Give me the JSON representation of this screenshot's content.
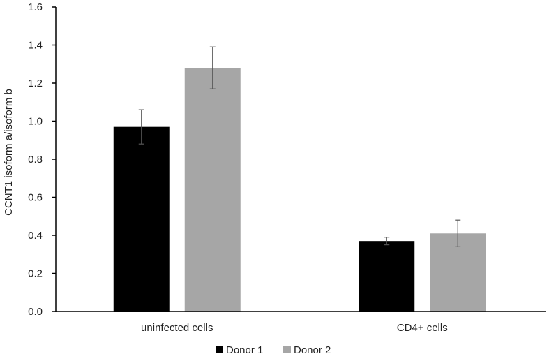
{
  "chart_data": {
    "type": "bar",
    "title": "",
    "xlabel": "",
    "ylabel": "CCNT1  isoform  a/isoform  b",
    "ylim": [
      0,
      1.6
    ],
    "yticks": [
      0,
      0.2,
      0.4,
      0.6,
      0.8,
      1.0,
      1.2,
      1.4,
      1.6
    ],
    "ytick_labels": [
      "0.0",
      "0.2",
      "0.4",
      "0.6",
      "0.8",
      "1.0",
      "1.2",
      "1.4",
      "1.6"
    ],
    "grid": false,
    "legend_position": "bottom",
    "categories": [
      "uninfected cells",
      "CD4+ cells"
    ],
    "series": [
      {
        "name": "Donor 1",
        "color": "#000000",
        "values": [
          0.97,
          0.37
        ],
        "errors": [
          0.09,
          0.02
        ]
      },
      {
        "name": "Donor 2",
        "color": "#a6a6a6",
        "values": [
          1.28,
          0.41
        ],
        "errors": [
          0.11,
          0.07
        ]
      }
    ]
  }
}
